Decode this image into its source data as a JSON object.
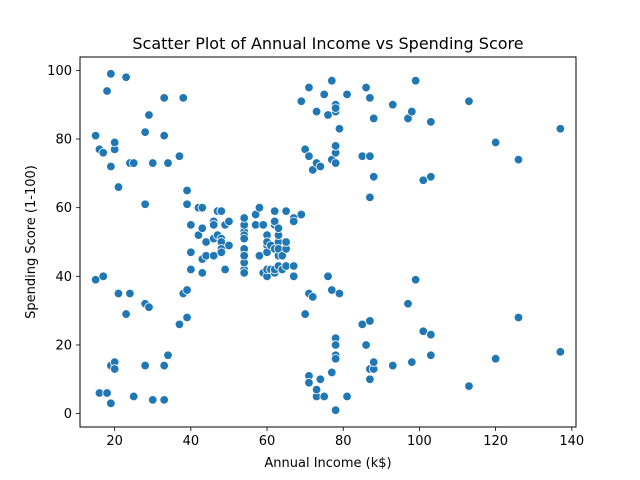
{
  "chart_data": {
    "type": "scatter",
    "title": "Scatter Plot of Annual Income vs Spending Score",
    "xlabel": "Annual Income (k$)",
    "ylabel": "Spending Score (1-100)",
    "xlim": [
      10.9,
      141.1
    ],
    "ylim": [
      -3.9,
      103.9
    ],
    "xticks": [
      20,
      40,
      60,
      80,
      100,
      120,
      140
    ],
    "yticks": [
      0,
      20,
      40,
      60,
      80,
      100
    ],
    "grid": false,
    "marker_color": "#1f77b4",
    "x": [
      15,
      15,
      16,
      16,
      17,
      17,
      18,
      18,
      19,
      19,
      19,
      19,
      20,
      20,
      20,
      20,
      21,
      21,
      23,
      23,
      24,
      24,
      25,
      25,
      28,
      28,
      28,
      28,
      29,
      29,
      30,
      30,
      33,
      33,
      33,
      33,
      34,
      34,
      37,
      37,
      38,
      38,
      39,
      39,
      39,
      39,
      40,
      40,
      40,
      40,
      42,
      42,
      43,
      43,
      43,
      43,
      44,
      44,
      46,
      46,
      46,
      46,
      47,
      47,
      48,
      48,
      48,
      48,
      48,
      48,
      49,
      49,
      50,
      50,
      54,
      54,
      54,
      54,
      54,
      54,
      54,
      54,
      54,
      54,
      54,
      54,
      57,
      57,
      58,
      58,
      59,
      59,
      60,
      60,
      60,
      60,
      60,
      60,
      61,
      61,
      62,
      62,
      62,
      62,
      62,
      62,
      63,
      63,
      63,
      63,
      63,
      63,
      64,
      64,
      65,
      65,
      65,
      65,
      67,
      67,
      67,
      67,
      69,
      69,
      70,
      70,
      71,
      71,
      71,
      71,
      71,
      71,
      72,
      72,
      73,
      73,
      73,
      73,
      74,
      74,
      75,
      75,
      76,
      76,
      77,
      77,
      77,
      77,
      78,
      78,
      78,
      78,
      78,
      78,
      78,
      78,
      78,
      78,
      78,
      78,
      79,
      79,
      81,
      81,
      85,
      85,
      86,
      86,
      87,
      87,
      87,
      87,
      87,
      87,
      88,
      88,
      88,
      88,
      93,
      93,
      97,
      97,
      98,
      98,
      99,
      99,
      101,
      101,
      103,
      103,
      103,
      103,
      113,
      113,
      120,
      120,
      126,
      126,
      137,
      137
    ],
    "y": [
      39,
      81,
      6,
      77,
      40,
      76,
      6,
      94,
      3,
      72,
      14,
      99,
      15,
      77,
      13,
      79,
      35,
      66,
      29,
      98,
      35,
      73,
      5,
      73,
      14,
      82,
      32,
      61,
      31,
      87,
      4,
      73,
      4,
      92,
      14,
      81,
      17,
      73,
      26,
      75,
      35,
      92,
      36,
      61,
      28,
      65,
      55,
      47,
      42,
      42,
      52,
      60,
      54,
      60,
      45,
      41,
      50,
      46,
      51,
      46,
      56,
      55,
      52,
      59,
      51,
      59,
      50,
      48,
      59,
      47,
      55,
      42,
      49,
      56,
      47,
      54,
      53,
      48,
      52,
      42,
      51,
      55,
      41,
      44,
      57,
      46,
      58,
      55,
      60,
      46,
      55,
      41,
      49,
      40,
      42,
      52,
      47,
      50,
      42,
      49,
      41,
      48,
      59,
      55,
      56,
      42,
      50,
      46,
      43,
      48,
      52,
      54,
      42,
      46,
      48,
      50,
      43,
      59,
      43,
      57,
      56,
      40,
      58,
      91,
      29,
      77,
      35,
      95,
      11,
      75,
      9,
      75,
      34,
      71,
      5,
      88,
      7,
      73,
      10,
      72,
      5,
      93,
      40,
      87,
      12,
      97,
      36,
      74,
      22,
      90,
      17,
      88,
      20,
      76,
      16,
      89,
      1,
      78,
      1,
      73,
      35,
      83,
      5,
      93,
      26,
      75,
      20,
      95,
      27,
      63,
      13,
      75,
      10,
      92,
      13,
      86,
      15,
      69,
      14,
      90,
      32,
      86,
      15,
      88,
      39,
      97,
      24,
      68,
      17,
      85,
      23,
      69,
      8,
      91,
      16,
      79,
      28,
      74,
      18,
      83
    ]
  }
}
